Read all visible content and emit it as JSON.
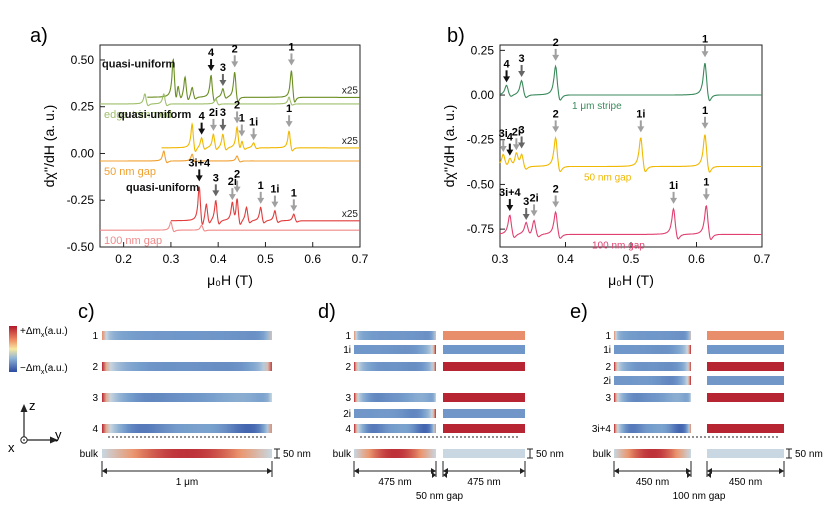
{
  "colors": {
    "green": "#6b8e23",
    "green_light": "#9fbf6a",
    "yellow": "#f0b800",
    "orange": "#f0a030",
    "red": "#e23c3c",
    "red_light": "#f08a8a",
    "teal": "#3a8a5c",
    "pink": "#e04070",
    "arrow_black": "#111111",
    "arrow_gray": "#a0a0a0",
    "arrow_dark": "#666666"
  },
  "panel_labels": {
    "a": "a)",
    "b": "b)",
    "c": "c)",
    "d": "d)",
    "e": "e)"
  },
  "chart_data": [
    {
      "id": "a",
      "type": "line",
      "xlabel": "μ₀H (T)",
      "ylabel": "dχ''/dH (a. u.)",
      "xlim": [
        0.15,
        0.7
      ],
      "ylim": [
        -0.5,
        0.58
      ],
      "xticks": [
        "0.2",
        "0.3",
        "0.4",
        "0.5",
        "0.6",
        "0.7"
      ],
      "yticks": [
        "-0.50",
        "-0.25",
        "0.00",
        "0.25",
        "0.50"
      ],
      "series": [
        {
          "name": "quasi-uniform",
          "color": "#6b8e23",
          "base": 0.3,
          "scale": "x25",
          "x0": 0.25,
          "peaks": [
            [
              0.305,
              0.22
            ],
            [
              0.315,
              0.08
            ],
            [
              0.33,
              0.12
            ],
            [
              0.345,
              0.06
            ],
            [
              0.385,
              0.13
            ],
            [
              0.41,
              0.05
            ],
            [
              0.435,
              0.15
            ],
            [
              0.555,
              0.16
            ]
          ],
          "labels": [
            {
              "text": "4",
              "x": 0.385,
              "kind": "black"
            },
            {
              "text": "3",
              "x": 0.41,
              "kind": "dark"
            },
            {
              "text": "2",
              "x": 0.435,
              "kind": "gray"
            },
            {
              "text": "1",
              "x": 0.555,
              "kind": "gray"
            }
          ]
        },
        {
          "name": "edge-trimmed",
          "color": "#9fbf6a",
          "base": 0.265,
          "x0": 0.15,
          "peaks": [
            [
              0.245,
              0.06
            ],
            [
              0.285,
              0.06
            ],
            [
              0.395,
              0.03
            ],
            [
              0.55,
              0.04
            ]
          ],
          "labels": []
        },
        {
          "name": "quasi-uniform",
          "color": "#f0b800",
          "base": 0.03,
          "scale": "x25",
          "x0": 0.28,
          "peaks": [
            [
              0.345,
              0.14
            ],
            [
              0.365,
              0.06
            ],
            [
              0.39,
              0.08
            ],
            [
              0.41,
              0.08
            ],
            [
              0.44,
              0.12
            ],
            [
              0.45,
              0.05
            ],
            [
              0.475,
              0.03
            ],
            [
              0.55,
              0.1
            ]
          ],
          "labels": [
            {
              "text": "4",
              "x": 0.365,
              "kind": "black"
            },
            {
              "text": "2i",
              "x": 0.39,
              "kind": "gray"
            },
            {
              "text": "3",
              "x": 0.41,
              "kind": "dark"
            },
            {
              "text": "2",
              "x": 0.44,
              "kind": "gray"
            },
            {
              "text": "1",
              "x": 0.45,
              "kind": "gray"
            },
            {
              "text": "1i",
              "x": 0.475,
              "kind": "gray"
            },
            {
              "text": "1",
              "x": 0.55,
              "kind": "gray"
            }
          ]
        },
        {
          "name": "50 nm gap",
          "color": "#f0a030",
          "base": -0.04,
          "x0": 0.15,
          "peaks": [
            [
              0.285,
              0.06
            ],
            [
              0.345,
              0.04
            ],
            [
              0.44,
              0.03
            ]
          ],
          "labels": []
        },
        {
          "name": "quasi-uniform",
          "color": "#e23c3c",
          "base": -0.36,
          "scale": "x25",
          "x0": 0.3,
          "peaks": [
            [
              0.36,
              0.2
            ],
            [
              0.375,
              0.1
            ],
            [
              0.395,
              0.12
            ],
            [
              0.43,
              0.1
            ],
            [
              0.44,
              0.14
            ],
            [
              0.46,
              0.08
            ],
            [
              0.49,
              0.08
            ],
            [
              0.52,
              0.06
            ],
            [
              0.56,
              0.04
            ]
          ],
          "labels": [
            {
              "text": "3i+4",
              "x": 0.36,
              "kind": "black"
            },
            {
              "text": "3",
              "x": 0.395,
              "kind": "dark"
            },
            {
              "text": "2i",
              "x": 0.43,
              "kind": "gray"
            },
            {
              "text": "2",
              "x": 0.44,
              "kind": "gray"
            },
            {
              "text": "1",
              "x": 0.49,
              "kind": "gray"
            },
            {
              "text": "1i",
              "x": 0.52,
              "kind": "gray"
            },
            {
              "text": "1",
              "x": 0.56,
              "kind": "gray"
            }
          ]
        },
        {
          "name": "100 nm gap",
          "color": "#f08a8a",
          "base": -0.41,
          "x0": 0.15,
          "peaks": [
            [
              0.3,
              0.05
            ],
            [
              0.365,
              0.03
            ]
          ],
          "labels": []
        }
      ]
    },
    {
      "id": "b",
      "type": "line",
      "xlabel": "μ₀H (T)",
      "ylabel": "dχ''/dH (a. u.)",
      "xlim": [
        0.3,
        0.7
      ],
      "ylim": [
        -0.85,
        0.28
      ],
      "xticks": [
        "0.3",
        "0.4",
        "0.5",
        "0.6",
        "0.7"
      ],
      "yticks": [
        "-0.75",
        "-0.50",
        "-0.25",
        "0.00",
        "0.25"
      ],
      "series": [
        {
          "name": "1 μm stripe",
          "color": "#3a8a5c",
          "base": 0.0,
          "x0": 0.3,
          "peaks": [
            [
              0.31,
              0.06
            ],
            [
              0.333,
              0.09
            ],
            [
              0.385,
              0.18
            ],
            [
              0.613,
              0.2
            ]
          ],
          "labels": [
            {
              "text": "4",
              "x": 0.31,
              "kind": "black"
            },
            {
              "text": "3",
              "x": 0.333,
              "kind": "dark"
            },
            {
              "text": "2",
              "x": 0.385,
              "kind": "gray"
            },
            {
              "text": "1",
              "x": 0.613,
              "kind": "gray"
            }
          ]
        },
        {
          "name": "50 nm gap",
          "color": "#f0b800",
          "base": -0.4,
          "x0": 0.3,
          "peaks": [
            [
              0.305,
              0.07
            ],
            [
              0.315,
              0.05
            ],
            [
              0.325,
              0.08
            ],
            [
              0.333,
              0.09
            ],
            [
              0.385,
              0.18
            ],
            [
              0.515,
              0.18
            ],
            [
              0.613,
              0.2
            ]
          ],
          "labels": [
            {
              "text": "3i",
              "x": 0.305,
              "kind": "gray"
            },
            {
              "text": "4",
              "x": 0.315,
              "kind": "black"
            },
            {
              "text": "2i",
              "x": 0.325,
              "kind": "gray"
            },
            {
              "text": "3",
              "x": 0.333,
              "kind": "dark"
            },
            {
              "text": "2",
              "x": 0.385,
              "kind": "gray"
            },
            {
              "text": "1i",
              "x": 0.515,
              "kind": "gray"
            },
            {
              "text": "1",
              "x": 0.613,
              "kind": "gray"
            }
          ]
        },
        {
          "name": "100 nm gap",
          "color": "#e04070",
          "base": -0.78,
          "x0": 0.3,
          "peaks": [
            [
              0.315,
              0.12
            ],
            [
              0.34,
              0.07
            ],
            [
              0.352,
              0.09
            ],
            [
              0.385,
              0.14
            ],
            [
              0.565,
              0.16
            ],
            [
              0.615,
              0.18
            ]
          ],
          "labels": [
            {
              "text": "3i+4",
              "x": 0.315,
              "kind": "black"
            },
            {
              "text": "3",
              "x": 0.34,
              "kind": "dark"
            },
            {
              "text": "2i",
              "x": 0.352,
              "kind": "gray"
            },
            {
              "text": "2",
              "x": 0.385,
              "kind": "gray"
            },
            {
              "text": "1i",
              "x": 0.565,
              "kind": "gray"
            },
            {
              "text": "1",
              "x": 0.615,
              "kind": "gray"
            }
          ]
        }
      ]
    }
  ],
  "colorbar": {
    "top_label": "+Δm",
    "top_sub": "x",
    "top_unit": "(a.u.)",
    "bottom_label": "−Δm",
    "bottom_sub": "x",
    "bottom_unit": "(a.u.)"
  },
  "axes_glyph": {
    "z": "z",
    "x": "x",
    "y": "y"
  },
  "profiles": {
    "c": {
      "rows": [
        {
          "label": "1",
          "mode": 1
        },
        {
          "label": "2",
          "mode": 2
        },
        {
          "label": "3",
          "mode": 3
        },
        {
          "label": "4",
          "mode": 4
        },
        {
          "label": "bulk",
          "mode": 0
        }
      ],
      "width_label": "1 μm",
      "thickness_label": "50 nm"
    },
    "d": {
      "rows": [
        {
          "label": "1",
          "mode": 1
        },
        {
          "label": "1i",
          "mode": -1
        },
        {
          "label": "2",
          "mode": 2
        },
        {
          "label": "3",
          "mode": 3
        },
        {
          "label": "2i",
          "mode": -2
        },
        {
          "label": "4",
          "mode": 4
        },
        {
          "label": "bulk",
          "mode": 0
        }
      ],
      "width_left": "475 nm",
      "width_right": "475 nm",
      "gap_label": "50 nm gap",
      "thickness_label": "50 nm"
    },
    "e": {
      "rows": [
        {
          "label": "1",
          "mode": 1
        },
        {
          "label": "1i",
          "mode": -1
        },
        {
          "label": "2",
          "mode": 2
        },
        {
          "label": "2i",
          "mode": -2
        },
        {
          "label": "3",
          "mode": 3
        },
        {
          "label": "3i+4",
          "mode": 4
        },
        {
          "label": "bulk",
          "mode": 0
        }
      ],
      "width_left": "450 nm",
      "width_right": "450 nm",
      "gap_label": "100 nm gap",
      "thickness_label": "50 nm"
    }
  }
}
